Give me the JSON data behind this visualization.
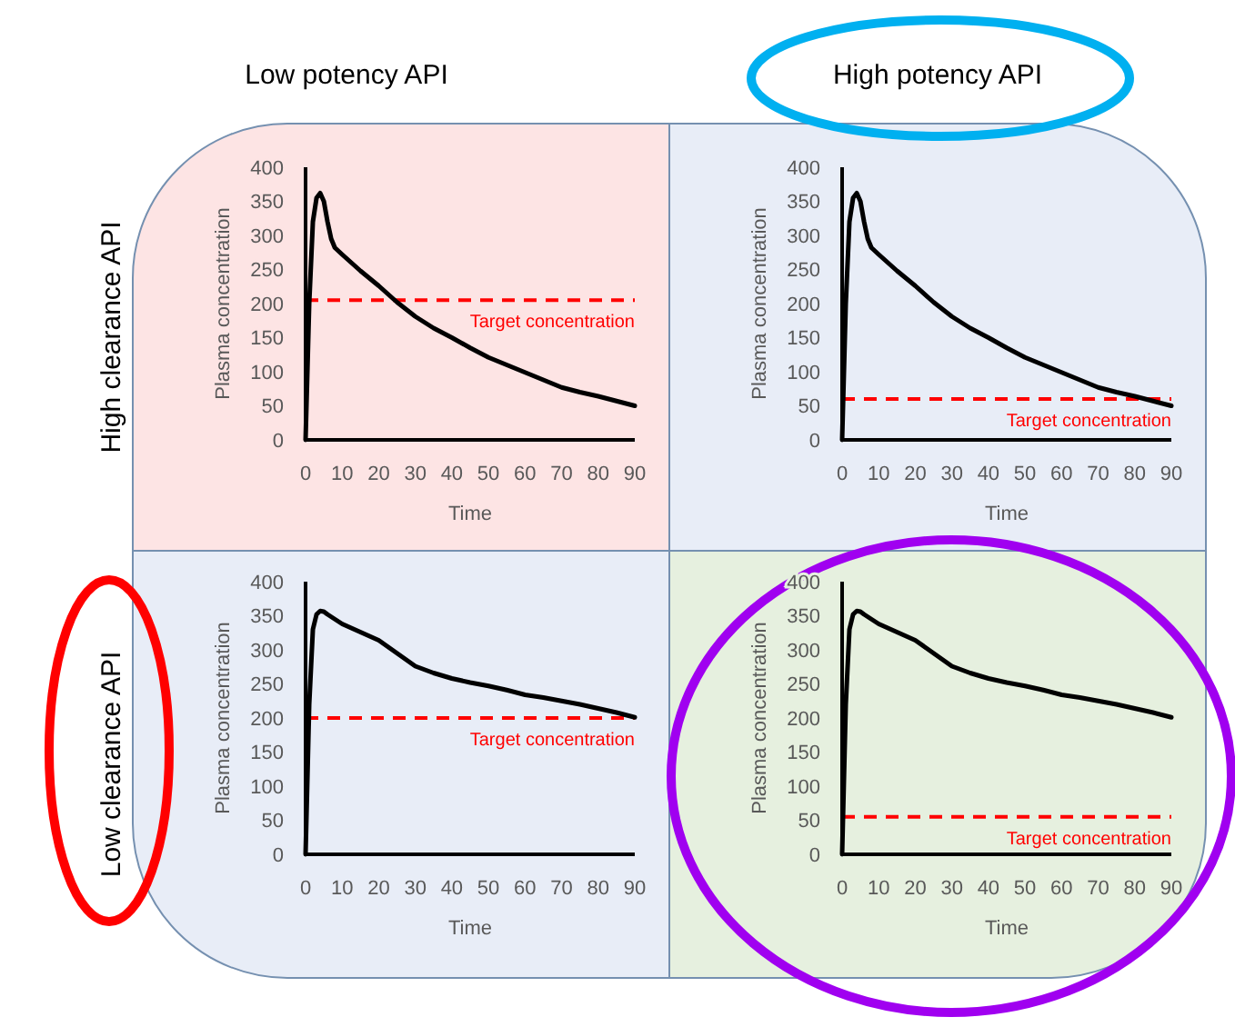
{
  "chart_data": [
    {
      "type": "line",
      "xlabel": "Time",
      "ylabel": "Plasma concentration",
      "annotations": [
        "Low potency API",
        "High clearance API"
      ],
      "x": [
        0,
        1,
        2,
        3,
        4,
        5,
        6,
        7,
        8,
        10,
        15,
        20,
        25,
        30,
        35,
        40,
        45,
        50,
        55,
        60,
        65,
        70,
        75,
        80,
        85,
        90
      ],
      "series": [
        {
          "color": "#000000",
          "values": [
            0,
            200,
            320,
            355,
            362,
            350,
            320,
            295,
            282,
            272,
            248,
            226,
            202,
            181,
            164,
            150,
            135,
            121,
            110,
            99,
            88,
            77,
            70,
            64,
            57,
            50
          ]
        }
      ],
      "xlim": [
        0,
        90
      ],
      "xticks": [
        0,
        10,
        20,
        30,
        40,
        50,
        60,
        70,
        80,
        90
      ],
      "ylim": [
        0,
        400
      ],
      "yticks": [
        0,
        50,
        100,
        150,
        200,
        250,
        300,
        350,
        400
      ],
      "ref_lines": [
        {
          "axis": "y",
          "value": 205,
          "label": "Target concentration",
          "color": "#ff0000",
          "line_style": "dashed"
        }
      ],
      "grid": false,
      "marker": "none",
      "line_style": "solid"
    },
    {
      "type": "line",
      "xlabel": "Time",
      "ylabel": "Plasma concentration",
      "annotations": [
        "High potency API"
      ],
      "x": [
        0,
        1,
        2,
        3,
        4,
        5,
        6,
        7,
        8,
        10,
        15,
        20,
        25,
        30,
        35,
        40,
        45,
        50,
        55,
        60,
        65,
        70,
        75,
        80,
        85,
        90
      ],
      "series": [
        {
          "color": "#000000",
          "values": [
            0,
            200,
            320,
            355,
            362,
            350,
            320,
            295,
            282,
            272,
            248,
            226,
            202,
            181,
            164,
            150,
            135,
            121,
            110,
            99,
            88,
            77,
            70,
            64,
            57,
            50
          ]
        }
      ],
      "xlim": [
        0,
        90
      ],
      "xticks": [
        0,
        10,
        20,
        30,
        40,
        50,
        60,
        70,
        80,
        90
      ],
      "ylim": [
        0,
        400
      ],
      "yticks": [
        0,
        50,
        100,
        150,
        200,
        250,
        300,
        350,
        400
      ],
      "ref_lines": [
        {
          "axis": "y",
          "value": 60,
          "label": "Target concentration",
          "color": "#ff0000",
          "line_style": "dashed"
        }
      ],
      "grid": false,
      "marker": "none",
      "line_style": "solid"
    },
    {
      "type": "line",
      "xlabel": "Time",
      "ylabel": "Plasma concentration",
      "annotations": [
        "Low clearance API"
      ],
      "x": [
        0,
        1,
        2,
        3,
        4,
        5,
        6,
        8,
        10,
        15,
        20,
        25,
        30,
        35,
        40,
        45,
        50,
        55,
        60,
        65,
        70,
        75,
        80,
        85,
        90
      ],
      "series": [
        {
          "color": "#000000",
          "values": [
            0,
            220,
            330,
            352,
            357,
            356,
            352,
            345,
            338,
            326,
            314,
            295,
            276,
            266,
            258,
            252,
            247,
            241,
            234,
            230,
            225,
            220,
            214,
            208,
            201
          ]
        }
      ],
      "xlim": [
        0,
        90
      ],
      "xticks": [
        0,
        10,
        20,
        30,
        40,
        50,
        60,
        70,
        80,
        90
      ],
      "ylim": [
        0,
        400
      ],
      "yticks": [
        0,
        50,
        100,
        150,
        200,
        250,
        300,
        350,
        400
      ],
      "ref_lines": [
        {
          "axis": "y",
          "value": 200,
          "label": "Target concentration",
          "color": "#ff0000",
          "line_style": "dashed"
        }
      ],
      "grid": false,
      "marker": "none",
      "line_style": "solid"
    },
    {
      "type": "line",
      "xlabel": "Time",
      "ylabel": "Plasma concentration",
      "x": [
        0,
        1,
        2,
        3,
        4,
        5,
        6,
        8,
        10,
        15,
        20,
        25,
        30,
        35,
        40,
        45,
        50,
        55,
        60,
        65,
        70,
        75,
        80,
        85,
        90
      ],
      "series": [
        {
          "color": "#000000",
          "values": [
            0,
            220,
            330,
            352,
            357,
            356,
            352,
            345,
            338,
            326,
            314,
            295,
            276,
            266,
            258,
            252,
            247,
            241,
            234,
            230,
            225,
            220,
            214,
            208,
            201
          ]
        }
      ],
      "xlim": [
        0,
        90
      ],
      "xticks": [
        0,
        10,
        20,
        30,
        40,
        50,
        60,
        70,
        80,
        90
      ],
      "ylim": [
        0,
        400
      ],
      "yticks": [
        0,
        50,
        100,
        150,
        200,
        250,
        300,
        350,
        400
      ],
      "ref_lines": [
        {
          "axis": "y",
          "value": 55,
          "label": "Target concentration",
          "color": "#ff0000",
          "line_style": "dashed"
        }
      ],
      "grid": false,
      "marker": "none",
      "line_style": "solid"
    }
  ]
}
